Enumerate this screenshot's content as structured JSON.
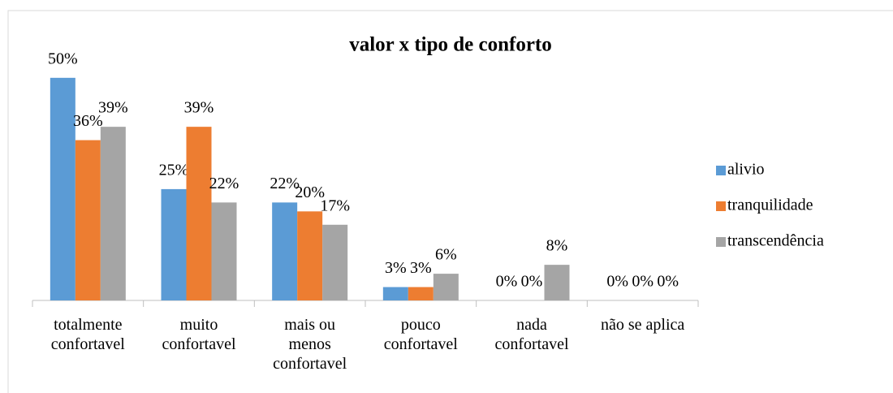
{
  "chart_data": {
    "type": "bar",
    "title": "valor x tipo de conforto",
    "categories": [
      "totalmente confortavel",
      "muito confortavel",
      "mais ou menos confortavel",
      "pouco confortavel",
      "nada confortavel",
      "não se aplica"
    ],
    "series": [
      {
        "name": "alivio",
        "color": "#5b9bd5",
        "values": [
          50,
          25,
          22,
          3,
          0,
          0
        ],
        "value_labels": [
          "50%",
          "25%",
          "22%",
          "3%",
          "0%",
          "0%"
        ]
      },
      {
        "name": "tranquilidade",
        "color": "#ed7d31",
        "values": [
          36,
          39,
          20,
          3,
          0,
          0
        ],
        "value_labels": [
          "36%",
          "39%",
          "20%",
          "3%",
          "0%",
          "0%"
        ]
      },
      {
        "name": "transcendência",
        "color": "#a5a5a5",
        "values": [
          39,
          22,
          17,
          6,
          8,
          0
        ],
        "value_labels": [
          "39%",
          "22%",
          "17%",
          "6%",
          "8%",
          "0%"
        ]
      }
    ],
    "ylim": [
      0,
      60
    ],
    "legend": "right"
  }
}
